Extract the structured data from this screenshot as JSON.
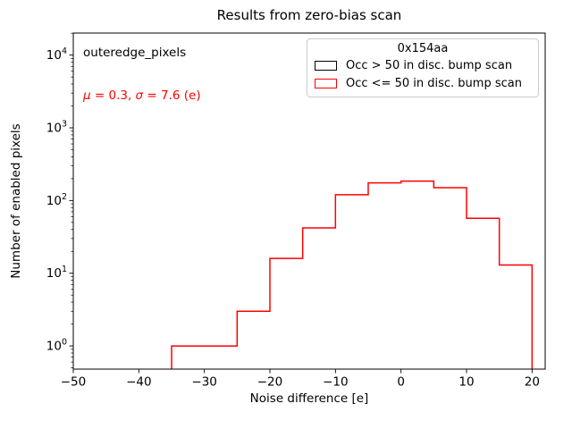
{
  "title": "Results from zero-bias scan",
  "annotations": {
    "dataset_label": "outeredge_pixels",
    "stats": {
      "mu_symbol": "μ",
      "mu_text": " = 0.3, ",
      "sigma_symbol": "σ",
      "sigma_text": " = 7.6 (e)",
      "color": "#ff0000"
    }
  },
  "legend": {
    "title": "0x154aa",
    "entries": [
      {
        "label": "Occ > 50 in disc. bump scan",
        "color": "#000000"
      },
      {
        "label": "Occ <= 50 in disc. bump scan",
        "color": "#ff0000"
      }
    ]
  },
  "chart_data": {
    "type": "step-histogram",
    "title": "Results from zero-bias scan",
    "xlabel": "Noise difference [e]",
    "ylabel": "Number of enabled pixels",
    "yscale": "log",
    "grid": false,
    "xlim": [
      -50,
      22
    ],
    "ylim": [
      0.48,
      20100
    ],
    "x_ticks": [
      {
        "value": -50,
        "label": "−50"
      },
      {
        "value": -40,
        "label": "−40"
      },
      {
        "value": -30,
        "label": "−30"
      },
      {
        "value": -20,
        "label": "−20"
      },
      {
        "value": -10,
        "label": "−10"
      },
      {
        "value": 0,
        "label": "0"
      },
      {
        "value": 10,
        "label": "10"
      },
      {
        "value": 20,
        "label": "20"
      }
    ],
    "y_tick_exponents": [
      0,
      1,
      2,
      3,
      4
    ],
    "series": [
      {
        "name": "Occ > 50 in disc. bump scan",
        "color": "#000000",
        "bin_edges": [],
        "counts": []
      },
      {
        "name": "Occ <= 50 in disc. bump scan",
        "color": "#ff0000",
        "bin_edges": [
          -35,
          -30,
          -25,
          -20,
          -15,
          -10,
          -5,
          0,
          5,
          10,
          15,
          20
        ],
        "counts": [
          1,
          1,
          3,
          16,
          42,
          120,
          175,
          185,
          150,
          57,
          13
        ]
      }
    ]
  }
}
